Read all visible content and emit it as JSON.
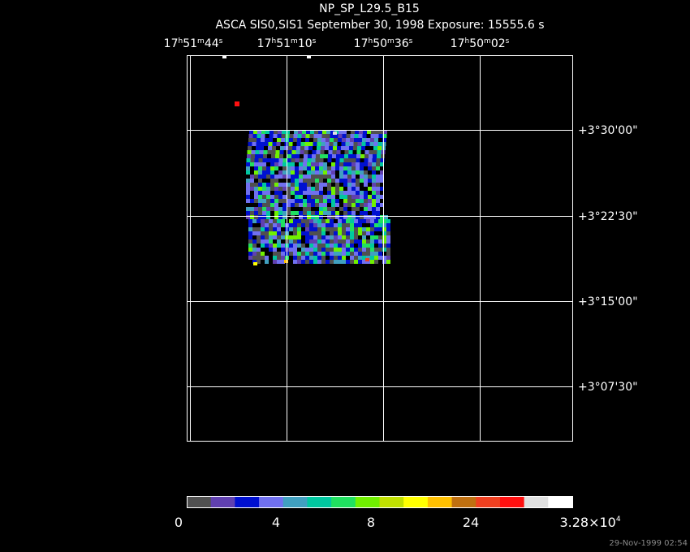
{
  "header": {
    "title": "NP_SP_L29.5_B15",
    "subtitle": "ASCA SIS0,SIS1 September 30, 1998 Exposure: 15555.6 s"
  },
  "ra_labels": [
    [
      "17",
      "h",
      "51",
      "m",
      "44",
      "s"
    ],
    [
      "17",
      "h",
      "51",
      "m",
      "10",
      "s"
    ],
    [
      "17",
      "h",
      "50",
      "m",
      "36",
      "s"
    ],
    [
      "17",
      "h",
      "50",
      "m",
      "02",
      "s"
    ]
  ],
  "dec_labels": [
    "+3°30'00\"",
    "+3°22'30\"",
    "+3°15'00\"",
    "+3°07'30\""
  ],
  "colorbar": {
    "colors": [
      "#505050",
      "#6040b0",
      "#0010d0",
      "#7070f0",
      "#40a0c0",
      "#00c8a0",
      "#20e060",
      "#70f000",
      "#c0e000",
      "#ffff00",
      "#ffc000",
      "#c07010",
      "#f04020",
      "#ff1010",
      "#e0e0e0",
      "#ffffff"
    ],
    "labels": [
      [
        "0"
      ],
      [
        "4"
      ],
      [
        "8"
      ],
      [
        "24"
      ],
      [
        "3.28×10",
        "4"
      ]
    ]
  },
  "timestamp": "29-Nov-1999 02:54"
}
